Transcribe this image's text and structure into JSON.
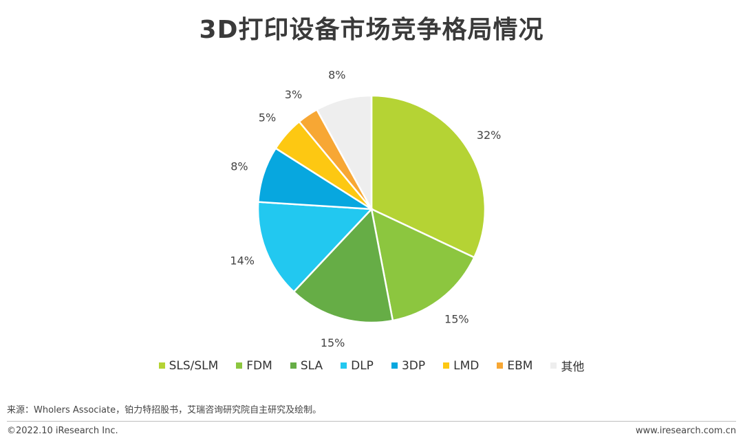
{
  "title": "3D打印设备市场竞争格局情况",
  "chart_data": {
    "type": "pie",
    "slices": [
      {
        "label": "SLS/SLM",
        "value": 32,
        "display": "32%",
        "color": "#b5d334"
      },
      {
        "label": "FDM",
        "value": 15,
        "display": "15%",
        "color": "#8cc63f"
      },
      {
        "label": "SLA",
        "value": 15,
        "display": "15%",
        "color": "#66ad46"
      },
      {
        "label": "DLP",
        "value": 14,
        "display": "14%",
        "color": "#22c8f0"
      },
      {
        "label": "3DP",
        "value": 8,
        "display": "8%",
        "color": "#07a7df"
      },
      {
        "label": "LMD",
        "value": 5,
        "display": "5%",
        "color": "#fdc812"
      },
      {
        "label": "EBM",
        "value": 3,
        "display": "3%",
        "color": "#f7a734"
      },
      {
        "label": "其他",
        "value": 8,
        "display": "8%",
        "color": "#eeeeee"
      }
    ],
    "start_angle": "top",
    "direction": "clockwise",
    "legend_position": "bottom"
  },
  "footer": {
    "source": "来源：Wholers Associate，铂力特招股书，艾瑞咨询研究院自主研究及绘制。",
    "copyright": "©2022.10 iResearch Inc.",
    "website": "www.iresearch.com.cn"
  }
}
